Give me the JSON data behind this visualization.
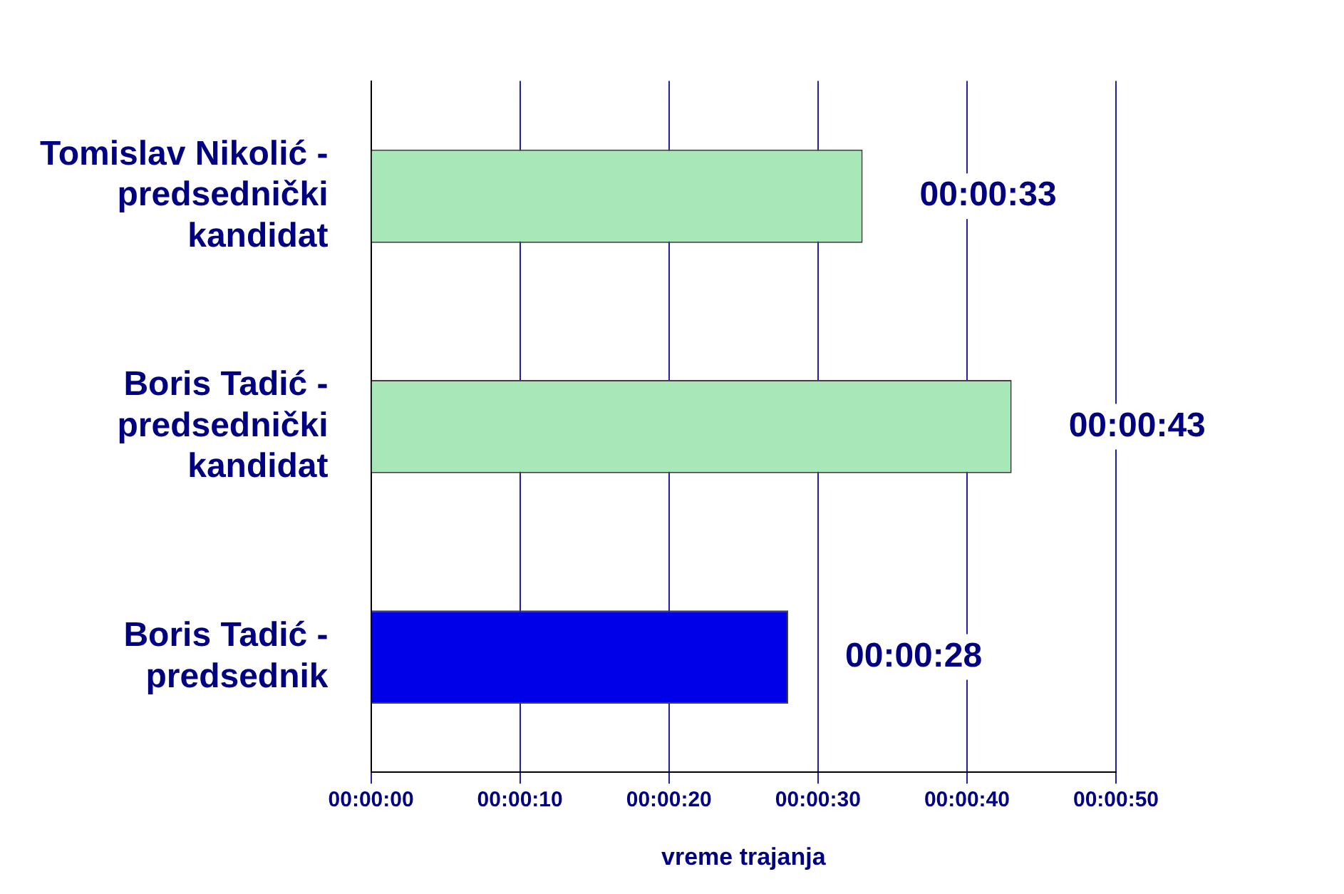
{
  "chart_data": {
    "type": "bar",
    "orientation": "horizontal",
    "categories": [
      "Tomislav Nikolić - predsednički kandidat",
      "Boris Tadić - predsednički kandidat",
      "Boris Tadić - predsednik"
    ],
    "values": [
      33,
      43,
      28
    ],
    "colors": [
      "#a8e8b8",
      "#a8e8b8",
      "#0000e8"
    ],
    "value_labels": [
      "00:00:33",
      "00:00:43",
      "00:00:28"
    ],
    "xlabel": "vreme trajanja",
    "xlim": [
      0,
      50
    ],
    "xticks": [
      {
        "value": 0,
        "label": "00:00:00"
      },
      {
        "value": 10,
        "label": "00:00:10"
      },
      {
        "value": 20,
        "label": "00:00:20"
      },
      {
        "value": 30,
        "label": "00:00:30"
      },
      {
        "value": 40,
        "label": "00:00:40"
      },
      {
        "value": 50,
        "label": "00:00:50"
      }
    ],
    "grid": "x",
    "legend": false
  }
}
